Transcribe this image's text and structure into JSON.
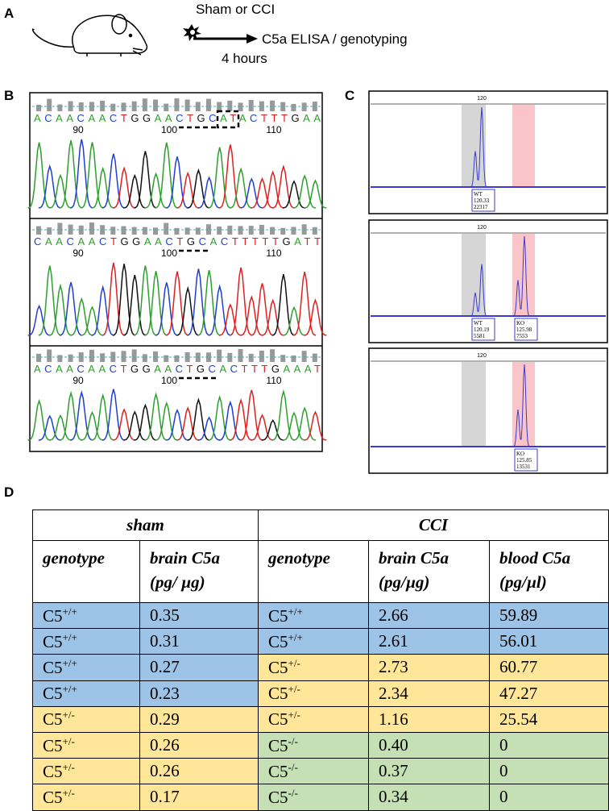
{
  "panels": {
    "a": {
      "letter": "A",
      "treatment": "Sham or CCI",
      "readout": "C5a ELISA / genotyping",
      "duration": "4 hours"
    },
    "b": {
      "letter": "B",
      "chromatograms": [
        {
          "sequence": "ACAACAACTGGAACTGCATACTTTGAA",
          "positions": [
            "90",
            "100",
            "110"
          ]
        },
        {
          "sequence": "CAACAACTGGAACTGCACTTTTTGATT",
          "positions": [
            "90",
            "100",
            "110"
          ]
        },
        {
          "sequence": "ACAACAACTGGAACTGCACTTTGAAAT",
          "positions": [
            "90",
            "100",
            "110"
          ]
        }
      ],
      "base_colors": {
        "A": "#2ca02c",
        "C": "#1f3fd0",
        "G": "#111111",
        "T": "#e02020"
      }
    },
    "c": {
      "letter": "C",
      "traces": [
        {
          "axis_label": "120",
          "peaks": [
            {
              "name": "WT",
              "size": "120.33",
              "height": "22317"
            }
          ]
        },
        {
          "axis_label": "120",
          "peaks": [
            {
              "name": "WT",
              "size": "120.19",
              "height": "5581"
            },
            {
              "name": "KO",
              "size": "125.98",
              "height": "7553"
            }
          ]
        },
        {
          "axis_label": "120",
          "peaks": [
            {
              "name": "KO",
              "size": "125.85",
              "height": "13531"
            }
          ]
        }
      ]
    },
    "d": {
      "letter": "D",
      "group_headers": [
        "sham",
        "CCI"
      ],
      "column_headers": [
        [
          "genotype"
        ],
        [
          "brain C5a",
          "(pg/ µg)"
        ],
        [
          "genotype"
        ],
        [
          "brain C5a",
          "(pg/µg)"
        ],
        [
          "blood C5a",
          "(pg/µl)"
        ]
      ],
      "zygosity_colors": {
        "+/+": "#9dc3e6",
        "+/-": "#ffe699",
        "-/-": "#c5e0b4"
      },
      "rows": [
        {
          "sham": {
            "gene": "C5",
            "zygosity": "+/+",
            "brain": "0.35"
          },
          "cci": {
            "gene": "C5",
            "zygosity": "+/+",
            "brain": "2.66",
            "blood": "59.89"
          }
        },
        {
          "sham": {
            "gene": "C5",
            "zygosity": "+/+",
            "brain": "0.31"
          },
          "cci": {
            "gene": "C5",
            "zygosity": "+/+",
            "brain": "2.61",
            "blood": "56.01"
          }
        },
        {
          "sham": {
            "gene": "C5",
            "zygosity": "+/+",
            "brain": "0.27"
          },
          "cci": {
            "gene": "C5",
            "zygosity": "+/-",
            "brain": "2.73",
            "blood": "60.77"
          }
        },
        {
          "sham": {
            "gene": "C5",
            "zygosity": "+/+",
            "brain": "0.23"
          },
          "cci": {
            "gene": "C5",
            "zygosity": "+/-",
            "brain": "2.34",
            "blood": "47.27"
          }
        },
        {
          "sham": {
            "gene": "C5",
            "zygosity": "+/-",
            "brain": "0.29"
          },
          "cci": {
            "gene": "C5",
            "zygosity": "+/-",
            "brain": "1.16",
            "blood": "25.54"
          }
        },
        {
          "sham": {
            "gene": "C5",
            "zygosity": "+/-",
            "brain": "0.26"
          },
          "cci": {
            "gene": "C5",
            "zygosity": "-/-",
            "brain": "0.40",
            "blood": "0"
          }
        },
        {
          "sham": {
            "gene": "C5",
            "zygosity": "+/-",
            "brain": "0.26"
          },
          "cci": {
            "gene": "C5",
            "zygosity": "-/-",
            "brain": "0.37",
            "blood": "0"
          }
        },
        {
          "sham": {
            "gene": "C5",
            "zygosity": "+/-",
            "brain": "0.17"
          },
          "cci": {
            "gene": "C5",
            "zygosity": "-/-",
            "brain": "0.34",
            "blood": "0"
          }
        }
      ]
    }
  }
}
